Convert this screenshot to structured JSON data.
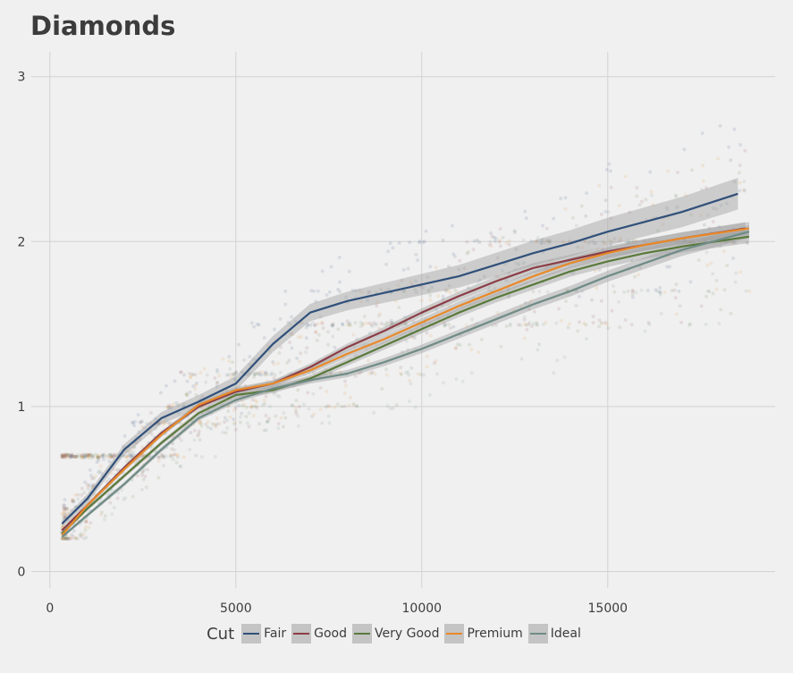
{
  "title": "Diamonds",
  "legend_title": "Cut",
  "chart_data": {
    "type": "scatter",
    "title": "Diamonds",
    "xlabel": "",
    "ylabel": "",
    "xlim": [
      -500,
      19500
    ],
    "ylim": [
      -0.1,
      3.15
    ],
    "x_ticks": [
      0,
      5000,
      10000,
      15000
    ],
    "y_ticks": [
      0,
      1,
      2,
      3
    ],
    "x_tick_labels": [
      "0",
      "5000",
      "10000",
      "15000"
    ],
    "y_tick_labels": [
      "0",
      "1",
      "2",
      "3"
    ],
    "grid": true,
    "legend_position": "bottom",
    "series": [
      {
        "name": "Fair",
        "color": "#30507a",
        "smooth_x": [
          326,
          1000,
          2000,
          3000,
          4000,
          5000,
          6000,
          7000,
          8000,
          9000,
          10000,
          11000,
          12000,
          13000,
          14000,
          15000,
          16000,
          17000,
          18500
        ],
        "smooth_y": [
          0.29,
          0.44,
          0.74,
          0.93,
          1.03,
          1.14,
          1.38,
          1.57,
          1.64,
          1.69,
          1.74,
          1.79,
          1.86,
          1.93,
          1.99,
          2.06,
          2.12,
          2.18,
          2.29
        ],
        "band": 0.05
      },
      {
        "name": "Good",
        "color": "#8b3e46",
        "smooth_x": [
          326,
          1000,
          2000,
          3000,
          4000,
          5000,
          6000,
          7000,
          8000,
          9000,
          10000,
          11000,
          12000,
          13000,
          14000,
          15000,
          16000,
          17000,
          18700
        ],
        "smooth_y": [
          0.25,
          0.4,
          0.63,
          0.84,
          1.0,
          1.09,
          1.14,
          1.24,
          1.36,
          1.46,
          1.57,
          1.67,
          1.76,
          1.84,
          1.89,
          1.94,
          1.98,
          2.02,
          2.08
        ],
        "band": 0.02
      },
      {
        "name": "Very Good",
        "color": "#5a7a3c",
        "smooth_x": [
          326,
          1000,
          2000,
          3000,
          4000,
          5000,
          6000,
          7000,
          8000,
          9000,
          10000,
          11000,
          12000,
          13000,
          14000,
          15000,
          16000,
          17000,
          18800
        ],
        "smooth_y": [
          0.23,
          0.38,
          0.58,
          0.78,
          0.96,
          1.07,
          1.1,
          1.17,
          1.27,
          1.37,
          1.47,
          1.57,
          1.66,
          1.74,
          1.82,
          1.88,
          1.93,
          1.97,
          2.03
        ],
        "band": 0.02
      },
      {
        "name": "Premium",
        "color": "#e88a2b",
        "smooth_x": [
          326,
          1000,
          2000,
          3000,
          4000,
          5000,
          6000,
          7000,
          8000,
          9000,
          10000,
          11000,
          12000,
          13000,
          14000,
          15000,
          16000,
          17000,
          18800
        ],
        "smooth_y": [
          0.22,
          0.4,
          0.62,
          0.83,
          1.01,
          1.1,
          1.14,
          1.22,
          1.32,
          1.41,
          1.51,
          1.61,
          1.7,
          1.79,
          1.87,
          1.93,
          1.98,
          2.02,
          2.08
        ],
        "band": 0.02
      },
      {
        "name": "Ideal",
        "color": "#6f8c86",
        "smooth_x": [
          326,
          1000,
          2000,
          3000,
          4000,
          5000,
          6000,
          7000,
          8000,
          9000,
          10000,
          11000,
          12000,
          13000,
          14000,
          15000,
          16000,
          17000,
          18800
        ],
        "smooth_y": [
          0.21,
          0.34,
          0.53,
          0.74,
          0.93,
          1.04,
          1.11,
          1.16,
          1.2,
          1.27,
          1.35,
          1.44,
          1.53,
          1.62,
          1.7,
          1.79,
          1.87,
          1.95,
          2.06
        ],
        "band": 0.02
      }
    ],
    "scatter_points": {
      "x_range": [
        326,
        18823
      ],
      "y_range": [
        0.2,
        3.0
      ],
      "opacity": 0.08
    }
  }
}
